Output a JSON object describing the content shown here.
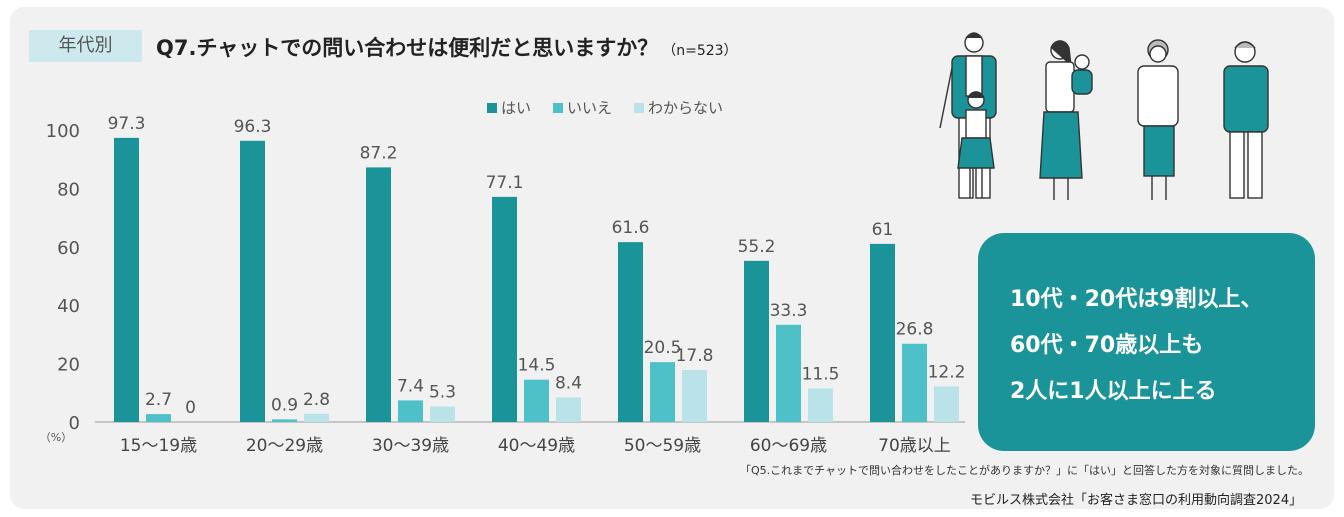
{
  "header": {
    "tag": "年代別",
    "title": "Q7.チャットでの問い合わせは便利だと思いますか？",
    "sample_size": "（n=523）"
  },
  "chart_data": {
    "type": "bar",
    "categories": [
      "15～19歳",
      "20～29歳",
      "30～39歳",
      "40～49歳",
      "50～59歳",
      "60～69歳",
      "70歳以上"
    ],
    "series": [
      {
        "name": "はい",
        "color": "#1b9499",
        "values": [
          97.3,
          96.3,
          87.2,
          77.1,
          61.6,
          55.2,
          61
        ],
        "labels": [
          "97.3",
          "96.3",
          "87.2",
          "77.1",
          "61.6",
          "55.2",
          "61"
        ]
      },
      {
        "name": "いいえ",
        "color": "#4ec0c8",
        "values": [
          2.7,
          0.9,
          7.4,
          14.5,
          20.5,
          33.3,
          26.8
        ],
        "labels": [
          "2.7",
          "0.9",
          "7.4",
          "14.5",
          "20.5",
          "33.3",
          "26.8"
        ]
      },
      {
        "name": "わからない",
        "color": "#b9e3e9",
        "values": [
          0,
          2.8,
          5.3,
          8.4,
          17.8,
          11.5,
          12.2
        ],
        "labels": [
          "0",
          "2.8",
          "5.3",
          "8.4",
          "17.8",
          "11.5",
          "12.2"
        ]
      }
    ],
    "y_ticks": [
      "0",
      "20",
      "40",
      "60",
      "80",
      "100"
    ],
    "ylim": [
      0,
      100
    ],
    "unit_label": "（%）",
    "legend_position": "top-center"
  },
  "callout": {
    "lines": [
      "10代・20代は9割以上、",
      "60代・70歳以上も",
      "2人に1人以上に上る"
    ]
  },
  "footnote": "「Q5.これまでチャットで問い合わせをしたことがありますか？」に「はい」と回答した方を対象に質問しました。",
  "source": "モビルス株式会社「お客さま窓口の利用動向調査2024」",
  "colors": {
    "teal": "#1b9499",
    "mid": "#4ec0c8",
    "light": "#b9e3e9"
  }
}
